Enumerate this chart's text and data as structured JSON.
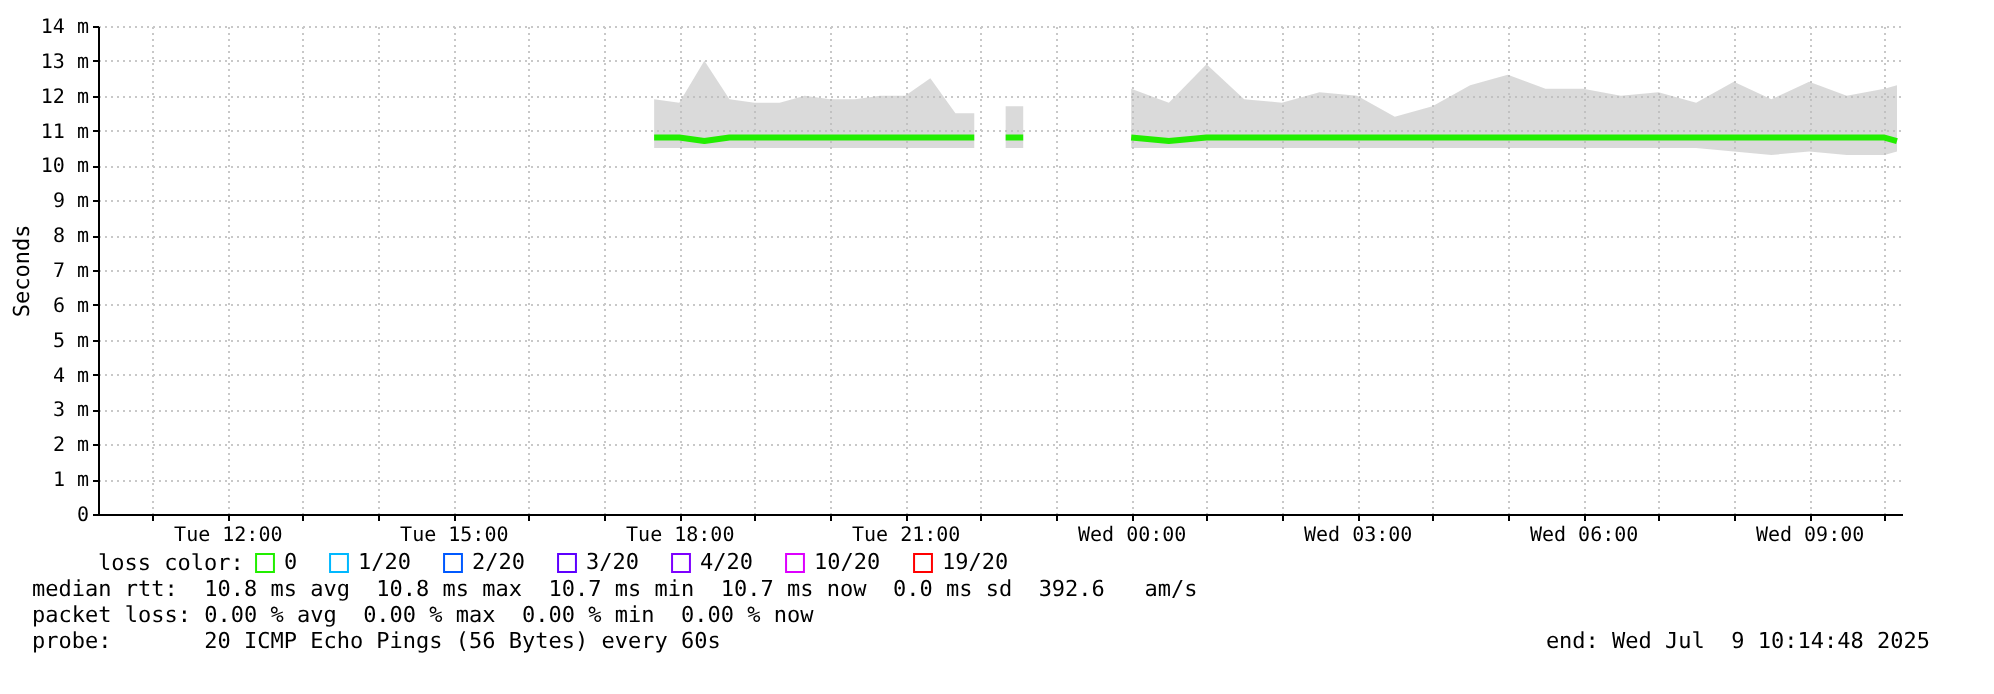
{
  "chart_data": {
    "type": "line",
    "ylabel": "Seconds",
    "legend_title": "loss color:",
    "x": [
      "2025-07-08T17:40",
      "2025-07-08T18:00",
      "2025-07-08T18:20",
      "2025-07-08T18:40",
      "2025-07-08T19:00",
      "2025-07-08T19:20",
      "2025-07-08T19:40",
      "2025-07-08T20:00",
      "2025-07-08T20:20",
      "2025-07-08T20:40",
      "2025-07-08T21:00",
      "2025-07-08T21:20",
      "2025-07-08T21:40",
      "2025-07-08T21:55",
      "2025-07-08T22:05",
      "2025-07-08T22:20",
      "2025-07-08T22:34",
      "2025-07-08T23:00",
      "2025-07-09T00:00",
      "2025-07-09T00:30",
      "2025-07-09T01:00",
      "2025-07-09T01:30",
      "2025-07-09T02:00",
      "2025-07-09T02:30",
      "2025-07-09T03:00",
      "2025-07-09T03:30",
      "2025-07-09T04:00",
      "2025-07-09T04:30",
      "2025-07-09T05:00",
      "2025-07-09T05:30",
      "2025-07-09T06:00",
      "2025-07-09T06:30",
      "2025-07-09T07:00",
      "2025-07-09T07:30",
      "2025-07-09T08:00",
      "2025-07-09T08:30",
      "2025-07-09T09:00",
      "2025-07-09T09:30",
      "2025-07-09T10:00",
      "2025-07-09T10:10"
    ],
    "series": [
      {
        "name": "0",
        "color": "#22ee00",
        "values": [
          10.8,
          10.8,
          10.7,
          10.8,
          10.8,
          10.8,
          10.8,
          10.8,
          10.8,
          10.8,
          10.8,
          10.8,
          10.8,
          10.8,
          null,
          10.8,
          10.8,
          null,
          10.8,
          10.7,
          10.8,
          10.8,
          10.8,
          10.8,
          10.8,
          10.8,
          10.8,
          10.8,
          10.8,
          10.8,
          10.8,
          10.8,
          10.8,
          10.8,
          10.8,
          10.8,
          10.8,
          10.8,
          10.8,
          10.7
        ],
        "lower": [
          10.5,
          10.5,
          10.5,
          10.5,
          10.5,
          10.5,
          10.5,
          10.5,
          10.5,
          10.5,
          10.5,
          10.5,
          10.5,
          10.5,
          null,
          10.5,
          10.5,
          null,
          10.5,
          10.5,
          10.5,
          10.5,
          10.5,
          10.5,
          10.5,
          10.5,
          10.5,
          10.5,
          10.5,
          10.5,
          10.5,
          10.5,
          10.5,
          10.5,
          10.4,
          10.3,
          10.4,
          10.3,
          10.3,
          10.4
        ],
        "upper": [
          11.9,
          11.8,
          13.0,
          11.9,
          11.8,
          11.8,
          12.0,
          11.9,
          11.9,
          12.0,
          12.0,
          12.5,
          11.5,
          11.5,
          null,
          11.7,
          11.7,
          null,
          12.2,
          11.8,
          12.9,
          11.9,
          11.8,
          12.1,
          12.0,
          11.4,
          11.7,
          12.3,
          12.6,
          12.2,
          12.2,
          12.0,
          12.1,
          11.8,
          12.4,
          11.9,
          12.4,
          12.0,
          12.2,
          12.3
        ]
      },
      {
        "name": "1/20",
        "color": "#00b8ff",
        "values": [
          null,
          null,
          null,
          null,
          null,
          null,
          null,
          null,
          null,
          null,
          null,
          null,
          null,
          null,
          null,
          null,
          null,
          null,
          null,
          null,
          null,
          null,
          null,
          null,
          null,
          null,
          null,
          null,
          null,
          null,
          null,
          null,
          null,
          null,
          null,
          null,
          null,
          null,
          null,
          null
        ]
      },
      {
        "name": "2/20",
        "color": "#0059ff",
        "values": [
          null,
          null,
          null,
          null,
          null,
          null,
          null,
          null,
          null,
          null,
          null,
          null,
          null,
          null,
          null,
          null,
          null,
          null,
          null,
          null,
          null,
          null,
          null,
          null,
          null,
          null,
          null,
          null,
          null,
          null,
          null,
          null,
          null,
          null,
          null,
          null,
          null,
          null,
          null,
          null
        ]
      },
      {
        "name": "3/20",
        "color": "#5e00ff",
        "values": [
          null,
          null,
          null,
          null,
          null,
          null,
          null,
          null,
          null,
          null,
          null,
          null,
          null,
          null,
          null,
          null,
          null,
          null,
          null,
          null,
          null,
          null,
          null,
          null,
          null,
          null,
          null,
          null,
          null,
          null,
          null,
          null,
          null,
          null,
          null,
          null,
          null,
          null,
          null,
          null
        ]
      },
      {
        "name": "4/20",
        "color": "#7e00ff",
        "values": [
          null,
          null,
          null,
          null,
          null,
          null,
          null,
          null,
          null,
          null,
          null,
          null,
          null,
          null,
          null,
          null,
          null,
          null,
          null,
          null,
          null,
          null,
          null,
          null,
          null,
          null,
          null,
          null,
          null,
          null,
          null,
          null,
          null,
          null,
          null,
          null,
          null,
          null,
          null,
          null
        ]
      },
      {
        "name": "10/20",
        "color": "#dd00ff",
        "values": [
          null,
          null,
          null,
          null,
          null,
          null,
          null,
          null,
          null,
          null,
          null,
          null,
          null,
          null,
          null,
          null,
          null,
          null,
          null,
          null,
          null,
          null,
          null,
          null,
          null,
          null,
          null,
          null,
          null,
          null,
          null,
          null,
          null,
          null,
          null,
          null,
          null,
          null,
          null,
          null
        ]
      },
      {
        "name": "19/20",
        "color": "#ff0000",
        "values": [
          null,
          null,
          null,
          null,
          null,
          null,
          null,
          null,
          null,
          null,
          null,
          null,
          null,
          null,
          null,
          null,
          null,
          null,
          null,
          null,
          null,
          null,
          null,
          null,
          null,
          null,
          null,
          null,
          null,
          null,
          null,
          null,
          null,
          null,
          null,
          null,
          null,
          null,
          null,
          null
        ]
      }
    ],
    "xlim": [
      "2025-07-08T10:17",
      "2025-07-09T10:14"
    ],
    "xticks": [
      {
        "value": "2025-07-08T11:00",
        "label": null
      },
      {
        "value": "2025-07-08T12:00",
        "label": "Tue 12:00"
      },
      {
        "value": "2025-07-08T13:00",
        "label": null
      },
      {
        "value": "2025-07-08T14:00",
        "label": null
      },
      {
        "value": "2025-07-08T15:00",
        "label": "Tue 15:00"
      },
      {
        "value": "2025-07-08T16:00",
        "label": null
      },
      {
        "value": "2025-07-08T17:00",
        "label": null
      },
      {
        "value": "2025-07-08T18:00",
        "label": "Tue 18:00"
      },
      {
        "value": "2025-07-08T19:00",
        "label": null
      },
      {
        "value": "2025-07-08T20:00",
        "label": null
      },
      {
        "value": "2025-07-08T21:00",
        "label": "Tue 21:00"
      },
      {
        "value": "2025-07-08T22:00",
        "label": null
      },
      {
        "value": "2025-07-08T23:00",
        "label": null
      },
      {
        "value": "2025-07-09T00:00",
        "label": "Wed 00:00"
      },
      {
        "value": "2025-07-09T01:00",
        "label": null
      },
      {
        "value": "2025-07-09T02:00",
        "label": null
      },
      {
        "value": "2025-07-09T03:00",
        "label": "Wed 03:00"
      },
      {
        "value": "2025-07-09T04:00",
        "label": null
      },
      {
        "value": "2025-07-09T05:00",
        "label": null
      },
      {
        "value": "2025-07-09T06:00",
        "label": "Wed 06:00"
      },
      {
        "value": "2025-07-09T07:00",
        "label": null
      },
      {
        "value": "2025-07-09T08:00",
        "label": null
      },
      {
        "value": "2025-07-09T09:00",
        "label": "Wed 09:00"
      },
      {
        "value": "2025-07-09T10:00",
        "label": null
      }
    ],
    "ylim": [
      0,
      14
    ],
    "yticks": [
      0,
      {
        "value": 1,
        "label": "1 m"
      },
      {
        "value": 2,
        "label": "2 m"
      },
      {
        "value": 3,
        "label": "3 m"
      },
      {
        "value": 4,
        "label": "4 m"
      },
      {
        "value": 5,
        "label": "5 m"
      },
      {
        "value": 6,
        "label": "6 m"
      },
      {
        "value": 7,
        "label": "7 m"
      },
      {
        "value": 8,
        "label": "8 m"
      },
      {
        "value": 9,
        "label": "9 m"
      },
      {
        "value": 10,
        "label": "10 m"
      },
      {
        "value": 11,
        "label": "11 m"
      },
      {
        "value": 12,
        "label": "12 m"
      },
      {
        "value": 13,
        "label": "13 m"
      },
      {
        "value": 14,
        "label": "14 m"
      }
    ],
    "grid": true,
    "legend": "bottom left",
    "marker": "none",
    "line_style": "solid",
    "annotations": [
      "median rtt:  10.8 ms avg  10.8 ms max  10.7 ms min  10.7 ms now  0.0 ms sd  392.6   am/s",
      "packet loss: 0.00 % avg  0.00 % max  0.00 % min  0.00 % now",
      "probe:       20 ICMP Echo Pings (56 Bytes) every 60s",
      "end: Wed Jul  9 10:14:48 2025"
    ]
  }
}
